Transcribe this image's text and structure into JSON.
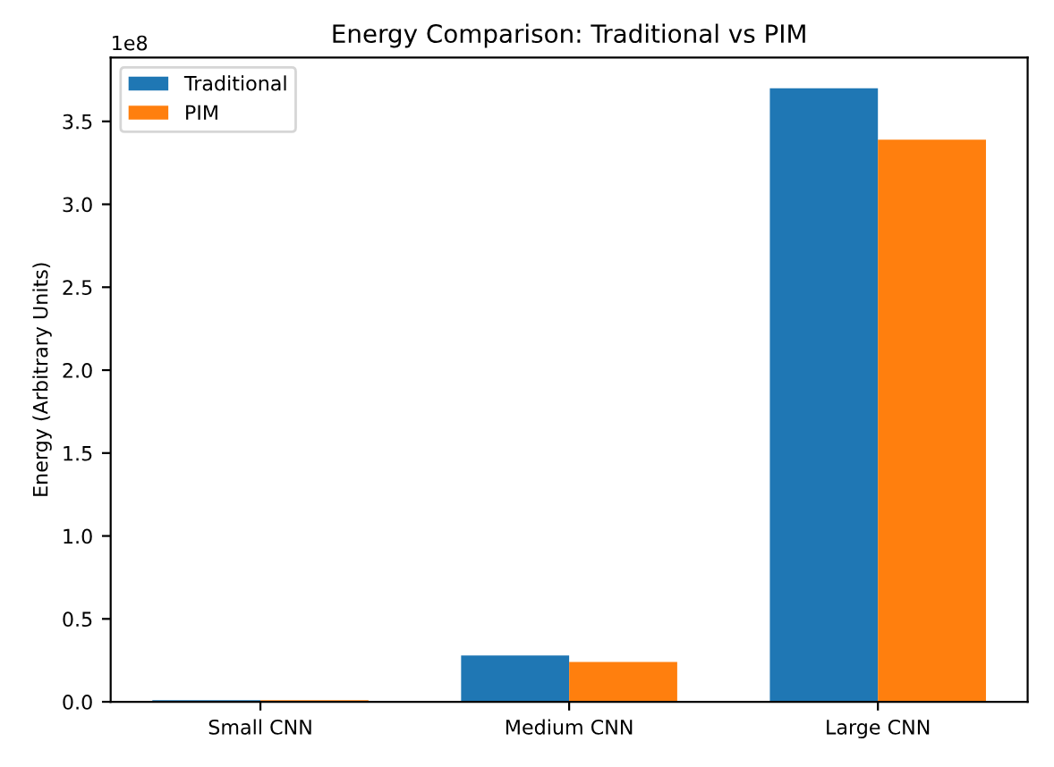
{
  "chart_data": {
    "type": "bar",
    "title": "Energy Comparison: Traditional vs PIM",
    "ylabel": "Energy (Arbitrary Units)",
    "categories": [
      "Small CNN",
      "Medium CNN",
      "Large CNN"
    ],
    "series": [
      {
        "name": "Traditional",
        "color": "#1f77b4",
        "values": [
          0.01,
          0.28,
          3.7
        ]
      },
      {
        "name": "PIM",
        "color": "#ff7f0e",
        "values": [
          0.01,
          0.24,
          3.39
        ]
      }
    ],
    "ylim": [
      0,
      3.885
    ],
    "yticks": [
      {
        "value": 0,
        "label": "0.0"
      },
      0.5,
      {
        "value": 1,
        "label": "1.0"
      },
      1.5,
      {
        "value": 2,
        "label": "2.0"
      },
      2.5,
      {
        "value": 3,
        "label": "3.0"
      },
      3.5
    ],
    "annotations": [
      "1e8"
    ],
    "legend": "top left",
    "grid": false
  }
}
